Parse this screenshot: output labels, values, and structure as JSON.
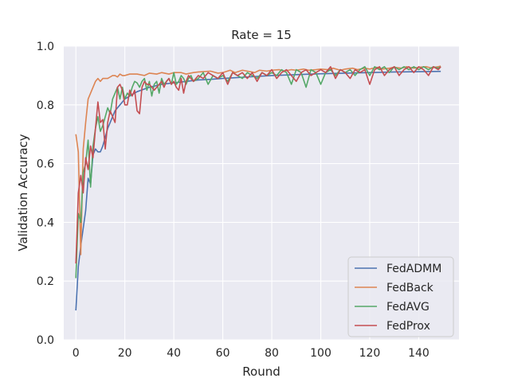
{
  "chart_data": {
    "type": "line",
    "title": "Rate = 15",
    "xlabel": "Round",
    "ylabel": "Validation Accuracy",
    "xlim": [
      -4.95,
      156.45
    ],
    "ylim": [
      0.0,
      1.0
    ],
    "xticks": [
      0,
      20,
      40,
      60,
      80,
      100,
      120,
      140
    ],
    "yticks": [
      0.0,
      0.2,
      0.4,
      0.6,
      0.8,
      1.0
    ],
    "xtick_labels": [
      "0",
      "20",
      "40",
      "60",
      "80",
      "100",
      "120",
      "140"
    ],
    "ytick_labels": [
      "0.0",
      "0.2",
      "0.4",
      "0.6",
      "0.8",
      "1.0"
    ],
    "grid": true,
    "legend_position": "lower-right",
    "style": {
      "background": "#eaeaf2",
      "grid_color": "#ffffff"
    },
    "series": [
      {
        "name": "FedADMM",
        "color": "#4c72b0",
        "points": [
          [
            0,
            0.1
          ],
          [
            1,
            0.25
          ],
          [
            2,
            0.32
          ],
          [
            3,
            0.38
          ],
          [
            4,
            0.44
          ],
          [
            5,
            0.55
          ],
          [
            6,
            0.53
          ],
          [
            7,
            0.63
          ],
          [
            8,
            0.65
          ],
          [
            9,
            0.64
          ],
          [
            10,
            0.64
          ],
          [
            11,
            0.66
          ],
          [
            12,
            0.69
          ],
          [
            13,
            0.72
          ],
          [
            14,
            0.74
          ],
          [
            15,
            0.76
          ],
          [
            16,
            0.78
          ],
          [
            17,
            0.79
          ],
          [
            18,
            0.8
          ],
          [
            19,
            0.81
          ],
          [
            20,
            0.82
          ],
          [
            22,
            0.83
          ],
          [
            25,
            0.845
          ],
          [
            30,
            0.86
          ],
          [
            35,
            0.87
          ],
          [
            40,
            0.875
          ],
          [
            45,
            0.88
          ],
          [
            50,
            0.885
          ],
          [
            55,
            0.887
          ],
          [
            60,
            0.89
          ],
          [
            70,
            0.895
          ],
          [
            80,
            0.9
          ],
          [
            90,
            0.903
          ],
          [
            100,
            0.906
          ],
          [
            110,
            0.908
          ],
          [
            120,
            0.91
          ],
          [
            130,
            0.912
          ],
          [
            140,
            0.913
          ],
          [
            149,
            0.914
          ]
        ]
      },
      {
        "name": "FedBack",
        "color": "#dd8452",
        "points": [
          [
            0,
            0.7
          ],
          [
            1,
            0.64
          ],
          [
            2,
            0.29
          ],
          [
            3,
            0.65
          ],
          [
            4,
            0.74
          ],
          [
            5,
            0.82
          ],
          [
            6,
            0.84
          ],
          [
            7,
            0.86
          ],
          [
            8,
            0.88
          ],
          [
            9,
            0.89
          ],
          [
            10,
            0.88
          ],
          [
            11,
            0.89
          ],
          [
            12,
            0.89
          ],
          [
            13,
            0.89
          ],
          [
            14,
            0.895
          ],
          [
            15,
            0.9
          ],
          [
            16,
            0.9
          ],
          [
            17,
            0.895
          ],
          [
            18,
            0.905
          ],
          [
            19,
            0.9
          ],
          [
            20,
            0.9
          ],
          [
            22,
            0.905
          ],
          [
            25,
            0.905
          ],
          [
            28,
            0.9
          ],
          [
            30,
            0.908
          ],
          [
            33,
            0.905
          ],
          [
            35,
            0.91
          ],
          [
            38,
            0.905
          ],
          [
            40,
            0.91
          ],
          [
            43,
            0.91
          ],
          [
            45,
            0.905
          ],
          [
            48,
            0.91
          ],
          [
            50,
            0.912
          ],
          [
            55,
            0.915
          ],
          [
            58,
            0.908
          ],
          [
            60,
            0.91
          ],
          [
            63,
            0.918
          ],
          [
            65,
            0.91
          ],
          [
            68,
            0.918
          ],
          [
            70,
            0.915
          ],
          [
            73,
            0.91
          ],
          [
            75,
            0.918
          ],
          [
            78,
            0.915
          ],
          [
            80,
            0.918
          ],
          [
            83,
            0.92
          ],
          [
            85,
            0.915
          ],
          [
            88,
            0.92
          ],
          [
            90,
            0.918
          ],
          [
            93,
            0.922
          ],
          [
            95,
            0.918
          ],
          [
            98,
            0.92
          ],
          [
            100,
            0.922
          ],
          [
            103,
            0.92
          ],
          [
            105,
            0.925
          ],
          [
            108,
            0.918
          ],
          [
            110,
            0.922
          ],
          [
            113,
            0.925
          ],
          [
            115,
            0.92
          ],
          [
            118,
            0.925
          ],
          [
            120,
            0.922
          ],
          [
            123,
            0.928
          ],
          [
            125,
            0.922
          ],
          [
            128,
            0.925
          ],
          [
            130,
            0.928
          ],
          [
            133,
            0.925
          ],
          [
            135,
            0.93
          ],
          [
            138,
            0.925
          ],
          [
            140,
            0.928
          ],
          [
            143,
            0.93
          ],
          [
            145,
            0.926
          ],
          [
            148,
            0.93
          ],
          [
            149,
            0.932
          ]
        ]
      },
      {
        "name": "FedAVG",
        "color": "#55a868",
        "points": [
          [
            0,
            0.21
          ],
          [
            1,
            0.43
          ],
          [
            2,
            0.4
          ],
          [
            3,
            0.57
          ],
          [
            4,
            0.6
          ],
          [
            5,
            0.68
          ],
          [
            6,
            0.52
          ],
          [
            7,
            0.66
          ],
          [
            8,
            0.72
          ],
          [
            9,
            0.76
          ],
          [
            10,
            0.71
          ],
          [
            11,
            0.73
          ],
          [
            12,
            0.76
          ],
          [
            13,
            0.79
          ],
          [
            14,
            0.77
          ],
          [
            15,
            0.82
          ],
          [
            16,
            0.84
          ],
          [
            17,
            0.86
          ],
          [
            18,
            0.82
          ],
          [
            19,
            0.86
          ],
          [
            20,
            0.82
          ],
          [
            21,
            0.84
          ],
          [
            22,
            0.83
          ],
          [
            23,
            0.86
          ],
          [
            24,
            0.88
          ],
          [
            25,
            0.875
          ],
          [
            26,
            0.86
          ],
          [
            27,
            0.88
          ],
          [
            28,
            0.89
          ],
          [
            29,
            0.85
          ],
          [
            30,
            0.88
          ],
          [
            31,
            0.83
          ],
          [
            32,
            0.87
          ],
          [
            33,
            0.88
          ],
          [
            34,
            0.84
          ],
          [
            35,
            0.89
          ],
          [
            36,
            0.87
          ],
          [
            37,
            0.88
          ],
          [
            38,
            0.89
          ],
          [
            39,
            0.87
          ],
          [
            40,
            0.91
          ],
          [
            41,
            0.87
          ],
          [
            42,
            0.88
          ],
          [
            43,
            0.9
          ],
          [
            44,
            0.89
          ],
          [
            45,
            0.87
          ],
          [
            46,
            0.89
          ],
          [
            47,
            0.9
          ],
          [
            48,
            0.88
          ],
          [
            50,
            0.89
          ],
          [
            52,
            0.91
          ],
          [
            54,
            0.87
          ],
          [
            56,
            0.9
          ],
          [
            58,
            0.89
          ],
          [
            60,
            0.9
          ],
          [
            62,
            0.88
          ],
          [
            64,
            0.91
          ],
          [
            66,
            0.9
          ],
          [
            68,
            0.89
          ],
          [
            70,
            0.91
          ],
          [
            72,
            0.9
          ],
          [
            74,
            0.89
          ],
          [
            76,
            0.91
          ],
          [
            78,
            0.9
          ],
          [
            80,
            0.91
          ],
          [
            82,
            0.9
          ],
          [
            84,
            0.92
          ],
          [
            86,
            0.91
          ],
          [
            88,
            0.87
          ],
          [
            90,
            0.92
          ],
          [
            92,
            0.91
          ],
          [
            94,
            0.86
          ],
          [
            96,
            0.92
          ],
          [
            98,
            0.91
          ],
          [
            100,
            0.87
          ],
          [
            102,
            0.91
          ],
          [
            104,
            0.92
          ],
          [
            106,
            0.9
          ],
          [
            108,
            0.92
          ],
          [
            110,
            0.91
          ],
          [
            112,
            0.92
          ],
          [
            114,
            0.9
          ],
          [
            116,
            0.92
          ],
          [
            118,
            0.93
          ],
          [
            120,
            0.9
          ],
          [
            122,
            0.93
          ],
          [
            124,
            0.92
          ],
          [
            126,
            0.93
          ],
          [
            128,
            0.91
          ],
          [
            130,
            0.93
          ],
          [
            132,
            0.92
          ],
          [
            134,
            0.93
          ],
          [
            136,
            0.92
          ],
          [
            138,
            0.93
          ],
          [
            140,
            0.92
          ],
          [
            142,
            0.93
          ],
          [
            144,
            0.92
          ],
          [
            146,
            0.93
          ],
          [
            148,
            0.925
          ],
          [
            149,
            0.93
          ]
        ]
      },
      {
        "name": "FedProx",
        "color": "#c44e52",
        "points": [
          [
            0,
            0.26
          ],
          [
            1,
            0.5
          ],
          [
            2,
            0.56
          ],
          [
            3,
            0.5
          ],
          [
            4,
            0.62
          ],
          [
            5,
            0.58
          ],
          [
            6,
            0.66
          ],
          [
            7,
            0.62
          ],
          [
            8,
            0.72
          ],
          [
            9,
            0.81
          ],
          [
            10,
            0.74
          ],
          [
            11,
            0.75
          ],
          [
            12,
            0.65
          ],
          [
            13,
            0.74
          ],
          [
            14,
            0.78
          ],
          [
            15,
            0.76
          ],
          [
            16,
            0.74
          ],
          [
            17,
            0.86
          ],
          [
            18,
            0.87
          ],
          [
            19,
            0.85
          ],
          [
            20,
            0.8
          ],
          [
            21,
            0.8
          ],
          [
            22,
            0.85
          ],
          [
            23,
            0.83
          ],
          [
            24,
            0.85
          ],
          [
            25,
            0.78
          ],
          [
            26,
            0.77
          ],
          [
            27,
            0.86
          ],
          [
            28,
            0.88
          ],
          [
            29,
            0.87
          ],
          [
            30,
            0.87
          ],
          [
            31,
            0.86
          ],
          [
            32,
            0.85
          ],
          [
            33,
            0.86
          ],
          [
            34,
            0.87
          ],
          [
            35,
            0.88
          ],
          [
            36,
            0.86
          ],
          [
            37,
            0.88
          ],
          [
            38,
            0.89
          ],
          [
            39,
            0.87
          ],
          [
            40,
            0.88
          ],
          [
            41,
            0.86
          ],
          [
            42,
            0.85
          ],
          [
            43,
            0.89
          ],
          [
            44,
            0.84
          ],
          [
            45,
            0.88
          ],
          [
            46,
            0.9
          ],
          [
            47,
            0.89
          ],
          [
            48,
            0.88
          ],
          [
            50,
            0.9
          ],
          [
            52,
            0.89
          ],
          [
            54,
            0.91
          ],
          [
            56,
            0.9
          ],
          [
            58,
            0.89
          ],
          [
            60,
            0.91
          ],
          [
            62,
            0.87
          ],
          [
            64,
            0.91
          ],
          [
            66,
            0.9
          ],
          [
            68,
            0.91
          ],
          [
            70,
            0.89
          ],
          [
            72,
            0.91
          ],
          [
            74,
            0.88
          ],
          [
            76,
            0.91
          ],
          [
            78,
            0.9
          ],
          [
            80,
            0.92
          ],
          [
            82,
            0.89
          ],
          [
            84,
            0.91
          ],
          [
            86,
            0.92
          ],
          [
            88,
            0.9
          ],
          [
            90,
            0.88
          ],
          [
            92,
            0.91
          ],
          [
            94,
            0.92
          ],
          [
            96,
            0.9
          ],
          [
            98,
            0.91
          ],
          [
            100,
            0.92
          ],
          [
            102,
            0.91
          ],
          [
            104,
            0.93
          ],
          [
            106,
            0.89
          ],
          [
            108,
            0.92
          ],
          [
            110,
            0.91
          ],
          [
            112,
            0.89
          ],
          [
            114,
            0.92
          ],
          [
            116,
            0.91
          ],
          [
            118,
            0.92
          ],
          [
            120,
            0.87
          ],
          [
            122,
            0.92
          ],
          [
            124,
            0.93
          ],
          [
            126,
            0.9
          ],
          [
            128,
            0.92
          ],
          [
            130,
            0.93
          ],
          [
            132,
            0.9
          ],
          [
            134,
            0.92
          ],
          [
            136,
            0.93
          ],
          [
            138,
            0.91
          ],
          [
            140,
            0.93
          ],
          [
            142,
            0.92
          ],
          [
            144,
            0.9
          ],
          [
            146,
            0.93
          ],
          [
            148,
            0.92
          ],
          [
            149,
            0.93
          ]
        ]
      }
    ]
  }
}
